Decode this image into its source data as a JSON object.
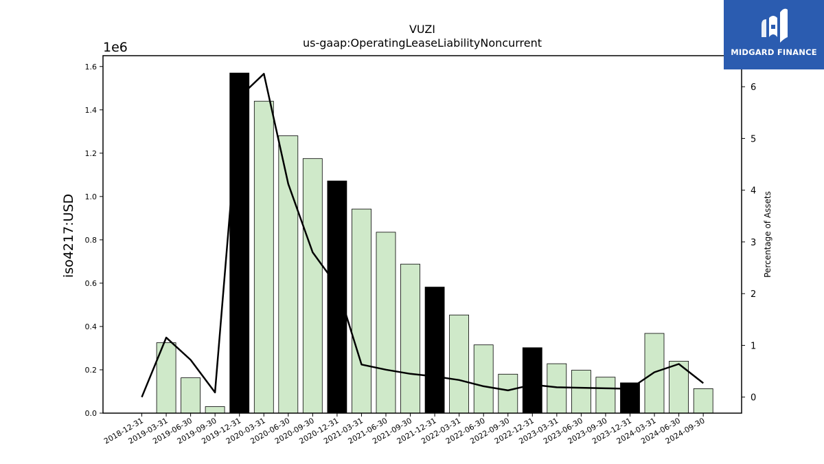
{
  "chart_data": {
    "type": "bar",
    "title": "VUZI",
    "subtitle": "us-gaap:OperatingLeaseLiabilityNoncurrent",
    "ylabel": "iso4217:USD",
    "y_multiplier_label": "1e6",
    "ylabel_right": "Percentage of Assets",
    "categories": [
      "2018-12-31",
      "2019-03-31",
      "2019-06-30",
      "2019-09-30",
      "2019-12-31",
      "2020-03-31",
      "2020-06-30",
      "2020-09-30",
      "2020-12-31",
      "2021-03-31",
      "2021-06-30",
      "2021-09-30",
      "2021-12-31",
      "2022-03-31",
      "2022-06-30",
      "2022-09-30",
      "2022-12-31",
      "2023-03-31",
      "2023-06-30",
      "2023-09-30",
      "2023-12-31",
      "2024-03-31",
      "2024-06-30",
      "2024-09-30"
    ],
    "series": [
      {
        "type": "bar",
        "values": [
          0,
          325000,
          163000,
          30000,
          1570000,
          1440000,
          1280000,
          1175000,
          1072000,
          942000,
          835000,
          688000,
          582000,
          453000,
          315000,
          180000,
          302000,
          228000,
          198000,
          166000,
          140000,
          368000,
          240000,
          113000
        ],
        "annual_flags": [
          false,
          false,
          false,
          false,
          true,
          false,
          false,
          false,
          true,
          false,
          false,
          false,
          true,
          false,
          false,
          false,
          true,
          false,
          false,
          false,
          true,
          false,
          false,
          false
        ]
      },
      {
        "type": "line",
        "axis": "right",
        "values": [
          0.0,
          1.15,
          0.72,
          0.09,
          5.8,
          6.25,
          4.12,
          2.8,
          2.15,
          0.63,
          0.53,
          0.45,
          0.4,
          0.33,
          0.21,
          0.13,
          0.24,
          0.19,
          0.18,
          0.17,
          0.16,
          0.48,
          0.64,
          0.27
        ]
      }
    ],
    "ylim": [
      0,
      1650000
    ],
    "yticks": [
      0.0,
      0.2,
      0.4,
      0.6,
      0.8,
      1.0,
      1.2,
      1.4,
      1.6
    ],
    "ylim_right": [
      -0.31,
      6.6
    ],
    "yticks_right": [
      0,
      1,
      2,
      3,
      4,
      5,
      6
    ],
    "grid": false,
    "colors": {
      "bar_quarter": "#cfe9c9",
      "bar_annual": "#000000",
      "bar_edge": "#000000",
      "line": "#000000"
    }
  },
  "logo": {
    "text": "MIDGARD FINANCE",
    "background": "#2b5cb0",
    "icon": "midgard-logo-icon"
  }
}
